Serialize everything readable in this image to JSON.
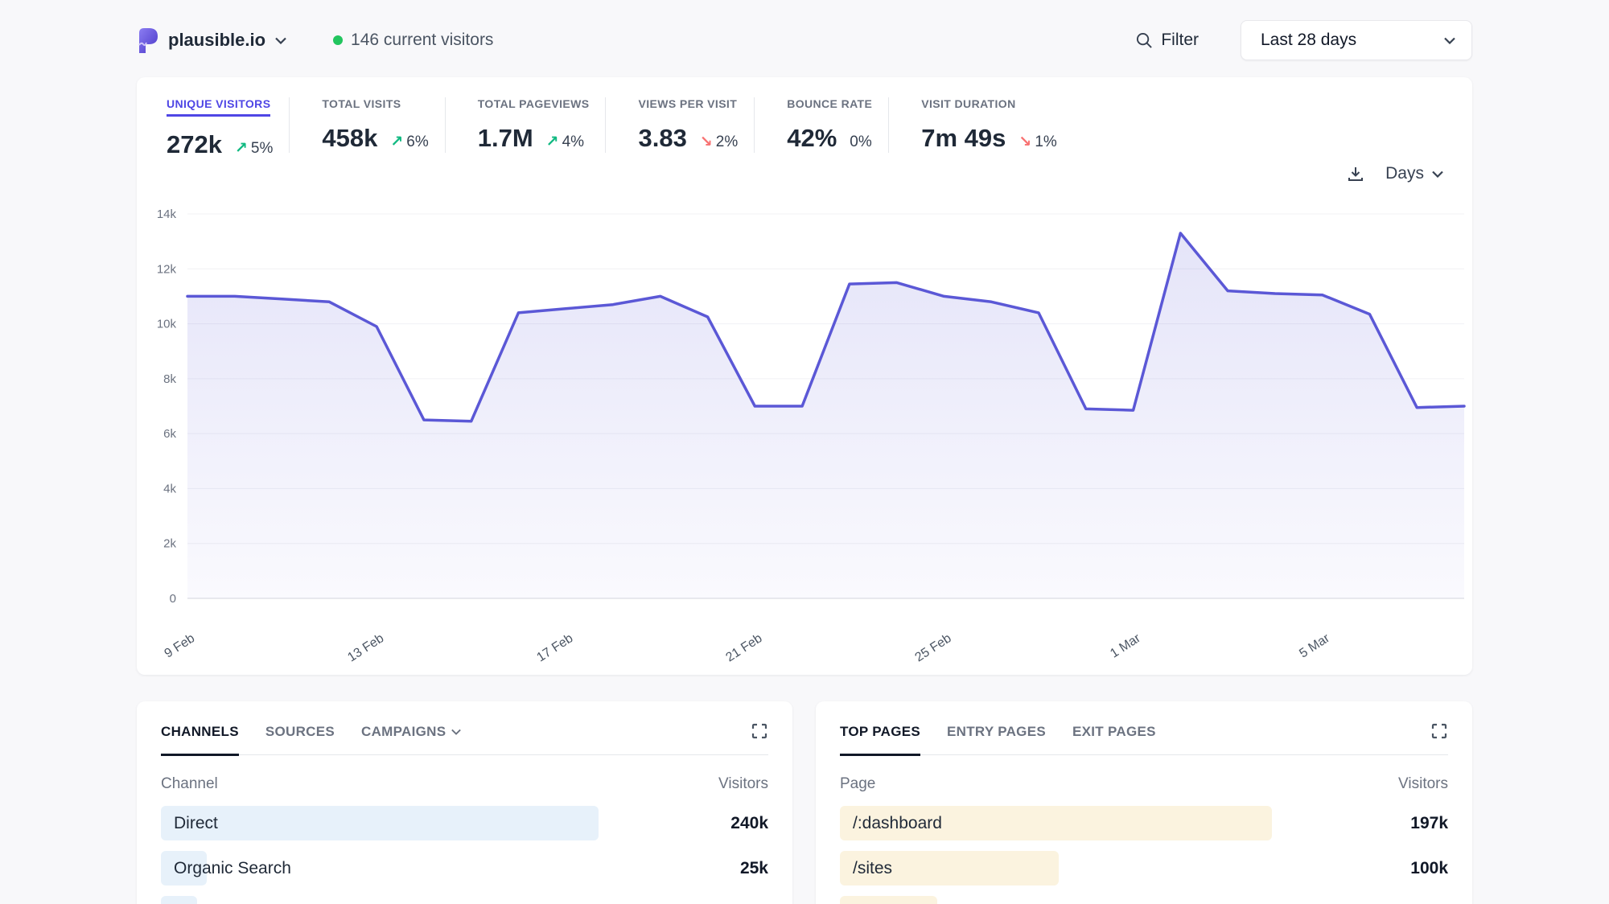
{
  "header": {
    "site_name": "plausible.io",
    "current_visitors": "146 current visitors",
    "filter_label": "Filter",
    "date_range": "Last 28 days"
  },
  "stats": [
    {
      "label": "UNIQUE VISITORS",
      "value": "272k",
      "change": "5%",
      "direction": "up",
      "active": true
    },
    {
      "label": "TOTAL VISITS",
      "value": "458k",
      "change": "6%",
      "direction": "up",
      "active": false
    },
    {
      "label": "TOTAL PAGEVIEWS",
      "value": "1.7M",
      "change": "4%",
      "direction": "up",
      "active": false
    },
    {
      "label": "VIEWS PER VISIT",
      "value": "3.83",
      "change": "2%",
      "direction": "down",
      "active": false
    },
    {
      "label": "BOUNCE RATE",
      "value": "42%",
      "change": "0%",
      "direction": "flat",
      "active": false
    },
    {
      "label": "VISIT DURATION",
      "value": "7m 49s",
      "change": "1%",
      "direction": "down",
      "active": false
    }
  ],
  "chart_controls": {
    "interval_label": "Days"
  },
  "chart_data": {
    "type": "area",
    "title": "Unique visitors by day",
    "categories": [
      "9 Feb",
      "10 Feb",
      "11 Feb",
      "12 Feb",
      "13 Feb",
      "14 Feb",
      "15 Feb",
      "16 Feb",
      "17 Feb",
      "18 Feb",
      "19 Feb",
      "20 Feb",
      "21 Feb",
      "22 Feb",
      "23 Feb",
      "24 Feb",
      "25 Feb",
      "26 Feb",
      "27 Feb",
      "28 Feb",
      "1 Mar",
      "2 Mar",
      "3 Mar",
      "4 Mar",
      "5 Mar",
      "6 Mar",
      "7 Mar",
      "8 Mar"
    ],
    "values": [
      11000,
      11000,
      10900,
      10800,
      9900,
      6500,
      6450,
      10400,
      10550,
      10700,
      11000,
      10250,
      7000,
      7000,
      11450,
      11500,
      11000,
      10800,
      10400,
      6900,
      6850,
      13300,
      11200,
      11100,
      11050,
      10350,
      6950,
      7000
    ],
    "xlabel": "",
    "ylabel": "",
    "ylim": [
      0,
      14000
    ],
    "ytick_labels": [
      "0",
      "2k",
      "4k",
      "6k",
      "8k",
      "10k",
      "12k",
      "14k"
    ],
    "xtick_indices": [
      0,
      4,
      8,
      12,
      16,
      20,
      24
    ],
    "xtick_labels": [
      "9 Feb",
      "13 Feb",
      "17 Feb",
      "21 Feb",
      "25 Feb",
      "1 Mar",
      "5 Mar"
    ],
    "grid": true,
    "legend": "none",
    "line_color": "#5b58d6",
    "fill_top_color": "rgba(91,88,214,0.16)",
    "fill_bottom_color": "rgba(91,88,214,0.03)"
  },
  "panels": {
    "left": {
      "tabs": [
        {
          "label": "CHANNELS",
          "active": true,
          "chevron": false
        },
        {
          "label": "SOURCES",
          "active": false,
          "chevron": false
        },
        {
          "label": "CAMPAIGNS",
          "active": false,
          "chevron": true
        }
      ],
      "columns": {
        "name": "Channel",
        "value": "Visitors"
      },
      "rows": [
        {
          "label": "Direct",
          "value": "240k",
          "bar_pct": 72
        },
        {
          "label": "Organic Search",
          "value": "25k",
          "bar_pct": 7.5
        },
        {
          "label": "",
          "value": "",
          "bar_pct": 6,
          "partial": true
        }
      ]
    },
    "right": {
      "tabs": [
        {
          "label": "TOP PAGES",
          "active": true,
          "chevron": false
        },
        {
          "label": "ENTRY PAGES",
          "active": false,
          "chevron": false
        },
        {
          "label": "EXIT PAGES",
          "active": false,
          "chevron": false
        }
      ],
      "columns": {
        "name": "Page",
        "value": "Visitors"
      },
      "rows": [
        {
          "label": "/:dashboard",
          "value": "197k",
          "bar_pct": 71
        },
        {
          "label": "/sites",
          "value": "100k",
          "bar_pct": 36
        },
        {
          "label": "",
          "value": "",
          "bar_pct": 16,
          "partial": true
        }
      ]
    }
  },
  "colors": {
    "accent_indigo": "#4f46e5",
    "line_indigo": "#5b58d6",
    "up_green": "#10b981",
    "down_red": "#f87171",
    "live_dot_green": "#22c55e",
    "left_bar_blue": "#e7f1fa",
    "right_bar_cream": "#fbf3df"
  }
}
